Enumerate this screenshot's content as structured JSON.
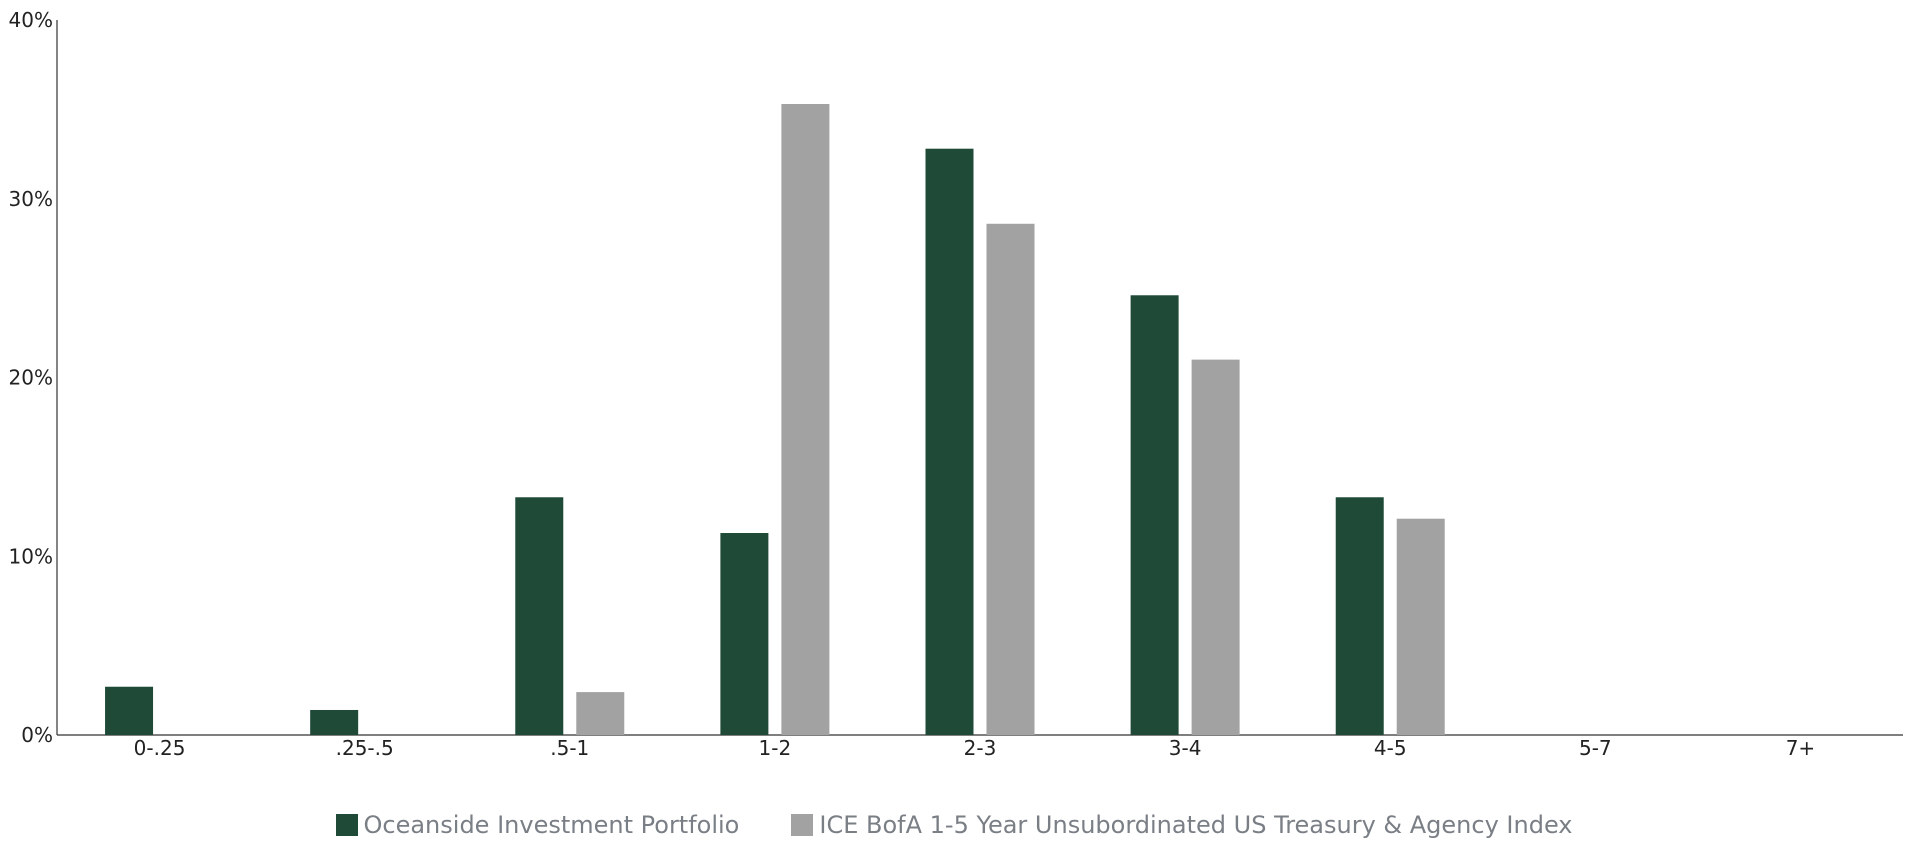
{
  "chart_data": {
    "type": "bar",
    "categories": [
      "0-.25",
      ".25-.5",
      ".5-1",
      "1-2",
      "2-3",
      "3-4",
      "4-5",
      "5-7",
      "7+"
    ],
    "series": [
      {
        "name": "Oceanside Investment Portfolio",
        "color": "#1f4a37",
        "values": [
          2.7,
          1.4,
          13.3,
          11.3,
          32.8,
          24.6,
          13.3,
          0,
          0
        ]
      },
      {
        "name": "ICE BofA 1-5 Year Unsubordinated US Treasury & Agency Index",
        "color": "#a2a2a2",
        "values": [
          0,
          0,
          2.4,
          35.3,
          28.6,
          21.0,
          12.1,
          0,
          0
        ]
      }
    ],
    "yticks": [
      "0%",
      "10%",
      "20%",
      "30%",
      "40%"
    ],
    "ylim": [
      0,
      40
    ],
    "grid": false,
    "legend_position": "bottom-center"
  }
}
